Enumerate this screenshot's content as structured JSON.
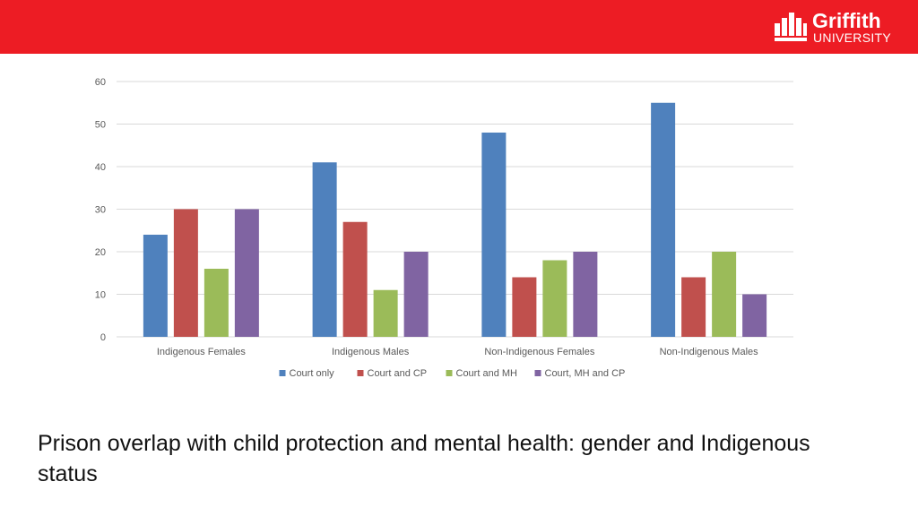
{
  "theme": {
    "bar_color": "#ED1C24",
    "series_colors": [
      "#4F81BD",
      "#C0504D",
      "#9BBB59",
      "#8064A2"
    ],
    "grid_color": "#D9D9D9"
  },
  "logo": {
    "icon": "griffith-logo-icon",
    "name": "Griffith",
    "subtitle": "UNIVERSITY"
  },
  "slide_title": "Prison overlap with child protection and mental health: gender and Indigenous status",
  "chart_data": {
    "type": "bar",
    "title": "",
    "xlabel": "",
    "ylabel": "",
    "categories": [
      "Indigenous Females",
      "Indigenous Males",
      "Non-Indigenous Females",
      "Non-Indigenous Males"
    ],
    "series": [
      {
        "name": "Court only",
        "values": [
          24,
          41,
          48,
          55
        ]
      },
      {
        "name": "Court and CP",
        "values": [
          30,
          27,
          14,
          14
        ]
      },
      {
        "name": "Court and MH",
        "values": [
          16,
          11,
          18,
          20
        ]
      },
      {
        "name": "Court, MH and CP",
        "values": [
          30,
          20,
          20,
          10
        ]
      }
    ],
    "ylim": [
      0,
      60
    ],
    "yticks": [
      0,
      10,
      20,
      30,
      40,
      50,
      60
    ],
    "grid": true,
    "legend_position": "bottom"
  }
}
